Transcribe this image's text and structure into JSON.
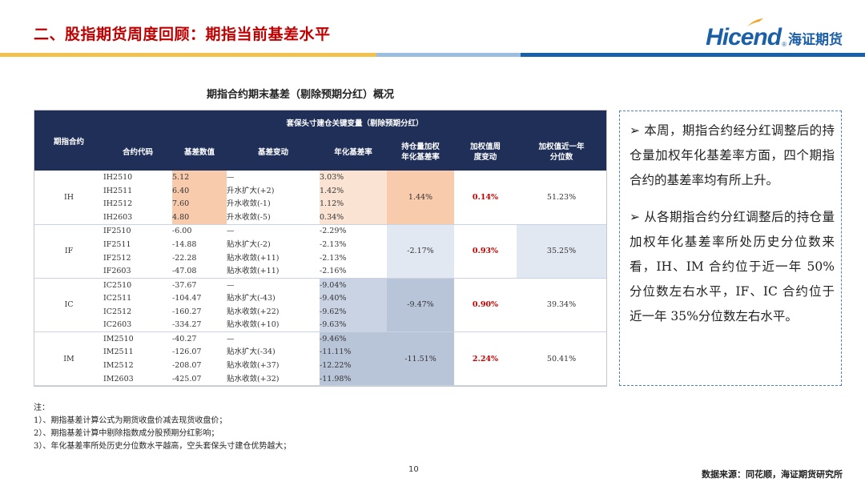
{
  "header": {
    "title": "二、股指期货周度回顾：期指当前基差水平",
    "logo_text": "Hicend",
    "logo_reg": "®",
    "logo_cn": "海证期货",
    "stripe_colors": [
      "#f2c14e",
      "#9bbde0",
      "#1a5fa8"
    ]
  },
  "table": {
    "title": "期指合约期末基差（剔除预期分红）概况",
    "header_main": "套保头寸建仓关键变量（剔除预期分红）",
    "header_group": "期指合约",
    "columns": [
      "合约代码",
      "基差数值",
      "基差变动",
      "年化基差率",
      "持仓量加权\n年化基差率",
      "加权值周\n度变动",
      "加权值近一年\n分位数"
    ],
    "groups": [
      {
        "name": "IH",
        "rows": [
          {
            "code": "IH2510",
            "basis": "5.12",
            "change": "—",
            "annual": "3.03%"
          },
          {
            "code": "IH2511",
            "basis": "6.40",
            "change": "升水扩大(+2)",
            "annual": "1.42%"
          },
          {
            "code": "IH2512",
            "basis": "7.60",
            "change": "升水收敛(-1)",
            "annual": "1.12%"
          },
          {
            "code": "IH2603",
            "basis": "4.80",
            "change": "升水收敛(-5)",
            "annual": "0.34%"
          }
        ],
        "weighted": "1.44%",
        "weekly_change": "0.14%",
        "percentile": "51.23%"
      },
      {
        "name": "IF",
        "rows": [
          {
            "code": "IF2510",
            "basis": "-6.00",
            "change": "—",
            "annual": "-2.29%"
          },
          {
            "code": "IF2511",
            "basis": "-14.88",
            "change": "贴水扩大(-2)",
            "annual": "-2.13%"
          },
          {
            "code": "IF2512",
            "basis": "-22.28",
            "change": "贴水收敛(+11)",
            "annual": "-2.13%"
          },
          {
            "code": "IF2603",
            "basis": "-47.08",
            "change": "贴水收敛(+11)",
            "annual": "-2.16%"
          }
        ],
        "weighted": "-2.17%",
        "weekly_change": "0.93%",
        "percentile": "35.25%"
      },
      {
        "name": "IC",
        "rows": [
          {
            "code": "IC2510",
            "basis": "-37.67",
            "change": "—",
            "annual": "-9.04%"
          },
          {
            "code": "IC2511",
            "basis": "-104.47",
            "change": "贴水扩大(-43)",
            "annual": "-9.40%"
          },
          {
            "code": "IC2512",
            "basis": "-160.27",
            "change": "贴水收敛(+22)",
            "annual": "-9.62%"
          },
          {
            "code": "IC2603",
            "basis": "-334.27",
            "change": "贴水收敛(+10)",
            "annual": "-9.63%"
          }
        ],
        "weighted": "-9.47%",
        "weekly_change": "0.90%",
        "percentile": "39.34%"
      },
      {
        "name": "IM",
        "rows": [
          {
            "code": "IM2510",
            "basis": "-40.27",
            "change": "—",
            "annual": "-9.46%"
          },
          {
            "code": "IM2511",
            "basis": "-126.07",
            "change": "贴水扩大(-34)",
            "annual": "-11.11%"
          },
          {
            "code": "IM2512",
            "basis": "-208.07",
            "change": "贴水收敛(+37)",
            "annual": "-12.22%"
          },
          {
            "code": "IM2603",
            "basis": "-425.07",
            "change": "贴水收敛(+32)",
            "annual": "-11.98%"
          }
        ],
        "weighted": "-11.51%",
        "weekly_change": "2.24%",
        "percentile": "50.41%"
      }
    ]
  },
  "commentary": {
    "para1": "➢  本周，期指合约经分红调整后的持仓量加权年化基差率方面，四个期指合约的基差率均有所上升。",
    "para2": "➢  从各期指合约分红调整后的持仓量加权年化基差率所处历史分位数来看，IH、IM 合约位于近一年 50%分位数左右水平，IF、IC 合约位于近一年 35%分位数左右水平。"
  },
  "notes": {
    "heading": "注：",
    "items": [
      "1）、期指基差计算公式为期货收盘价减去现货收盘价；",
      "2）、期指基差计算中剔除指数成分股预期分红影响；",
      "3）、年化基差率所处历史分位数水平越高，空头套保头寸建仓优势越大；"
    ]
  },
  "footer": {
    "page": "10",
    "source": "数据来源：同花顺，海证期货研究所"
  }
}
